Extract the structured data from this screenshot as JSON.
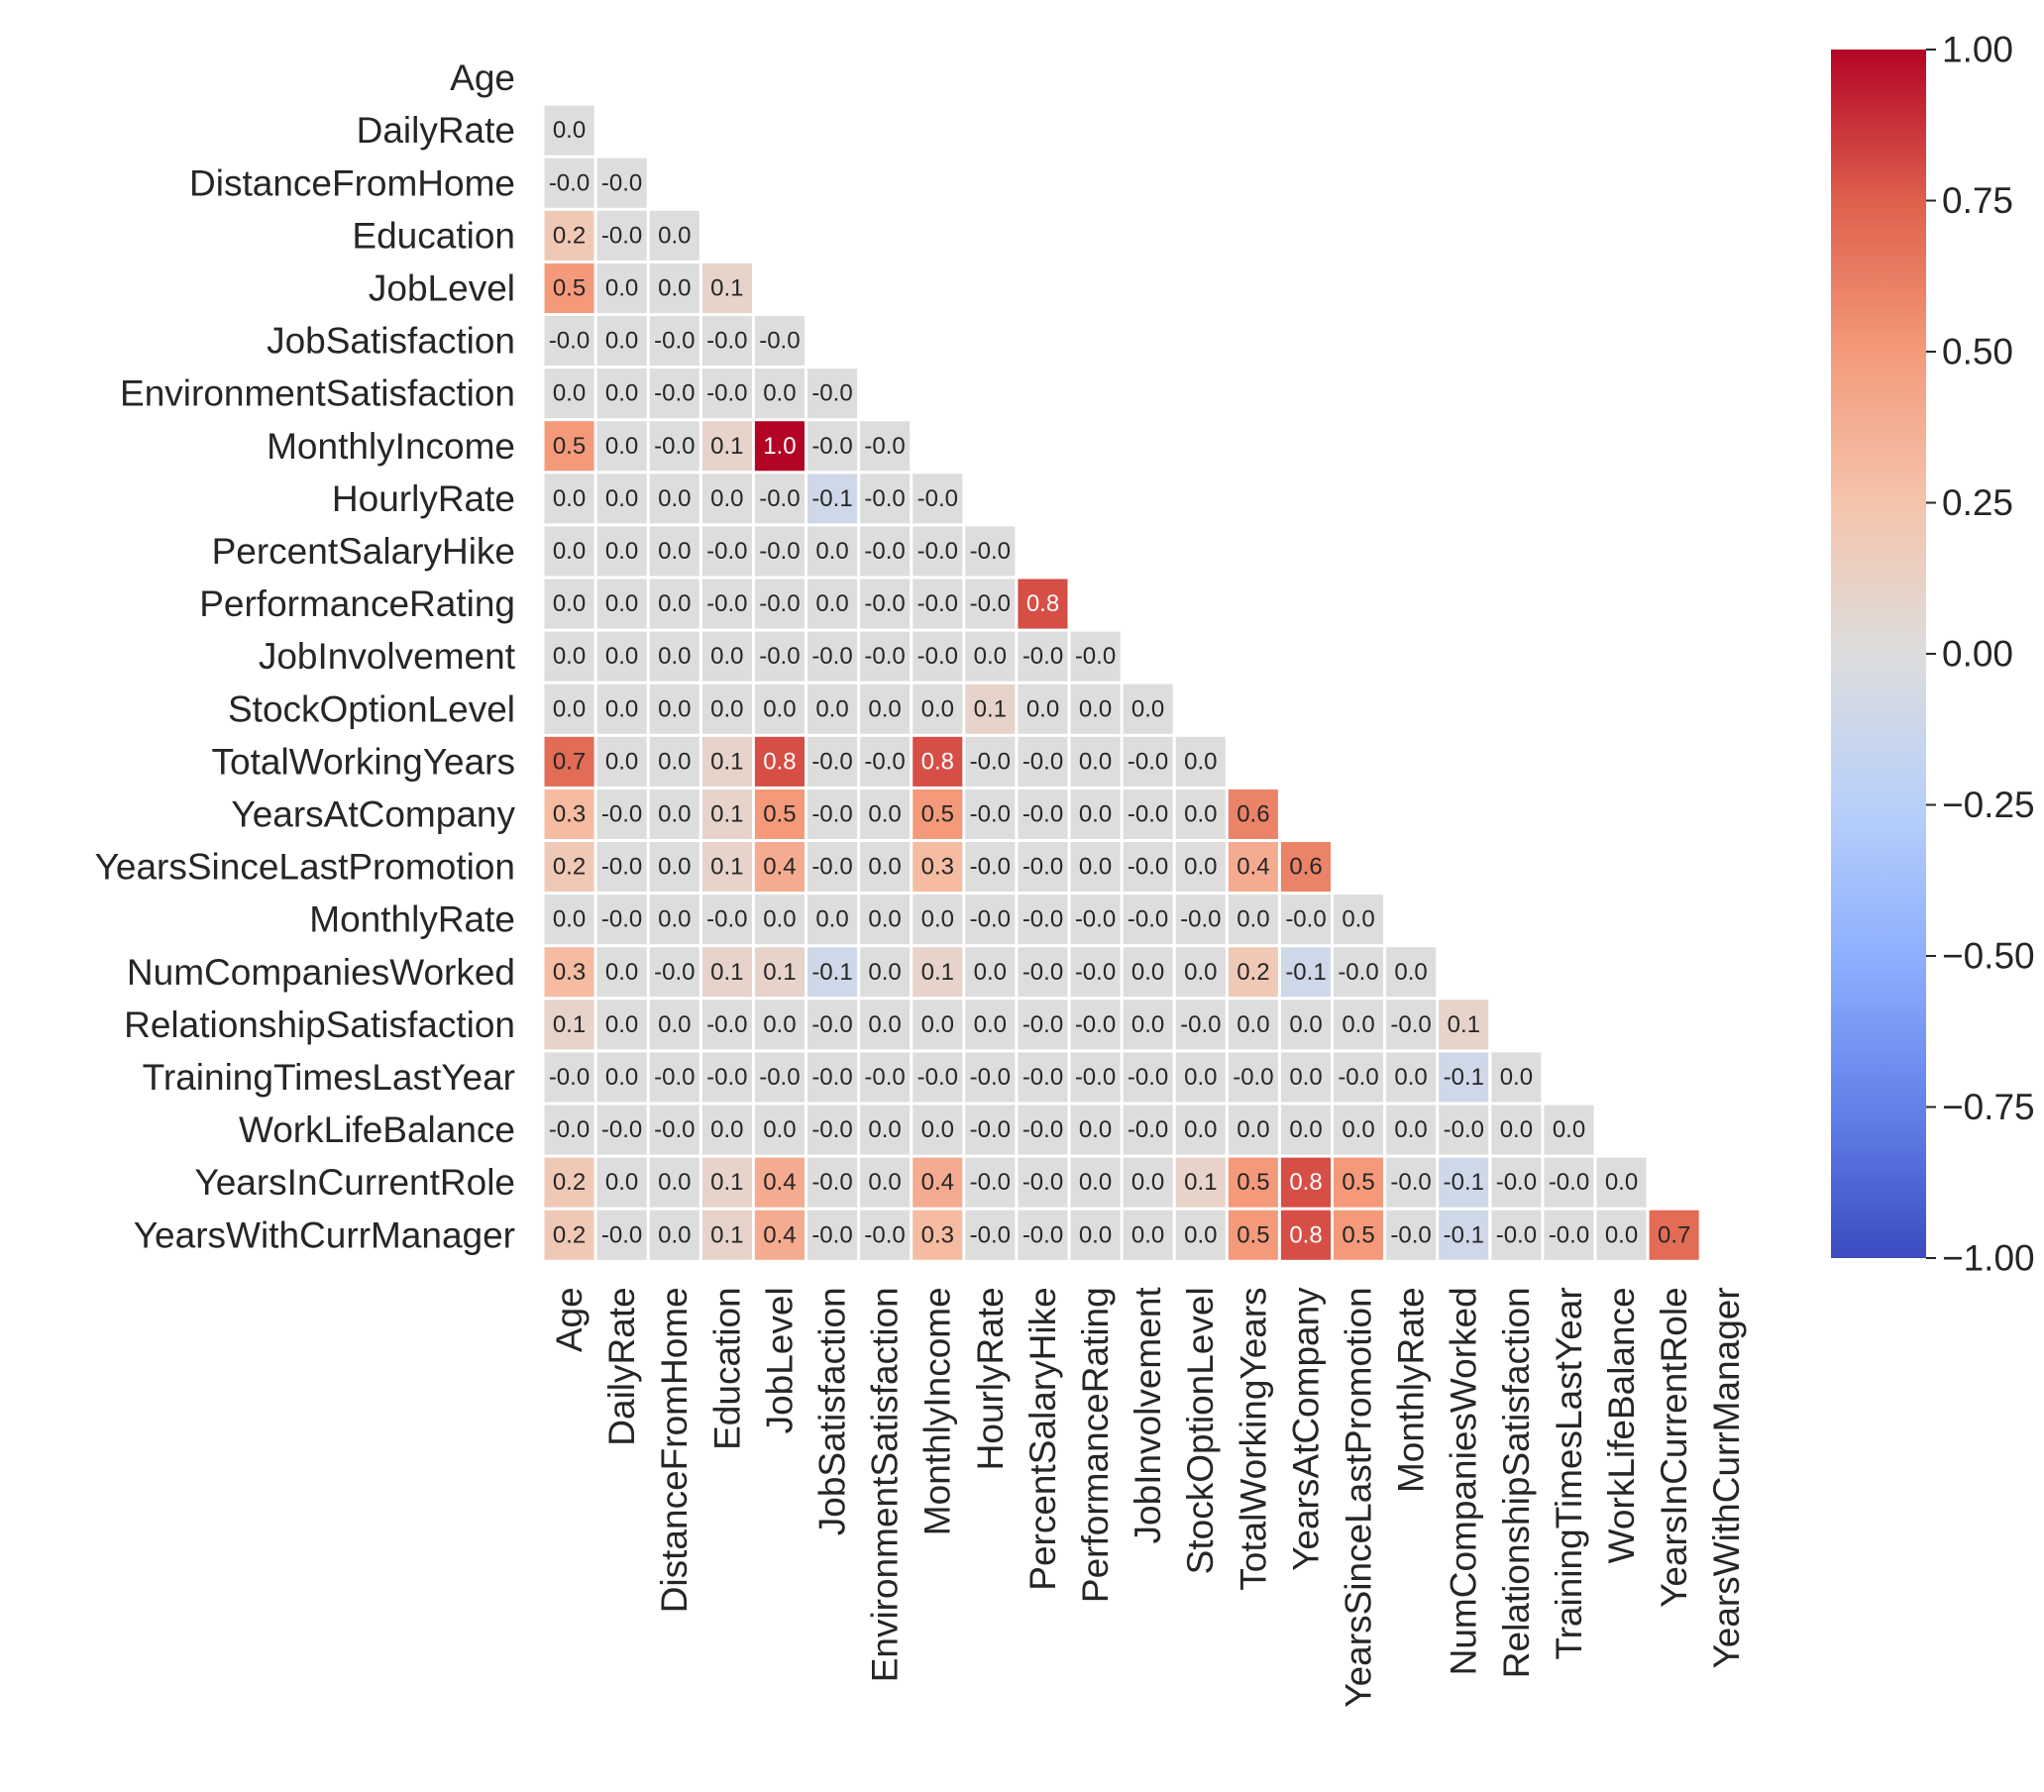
{
  "chart_data": {
    "type": "heatmap",
    "title": "",
    "variant": "lower-triangle correlation matrix",
    "colormap": "coolwarm",
    "vmin": -1.0,
    "vmax": 1.0,
    "labels": [
      "Age",
      "DailyRate",
      "DistanceFromHome",
      "Education",
      "JobLevel",
      "JobSatisfaction",
      "EnvironmentSatisfaction",
      "MonthlyIncome",
      "HourlyRate",
      "PercentSalaryHike",
      "PerformanceRating",
      "JobInvolvement",
      "StockOptionLevel",
      "TotalWorkingYears",
      "YearsAtCompany",
      "YearsSinceLastPromotion",
      "MonthlyRate",
      "NumCompaniesWorked",
      "RelationshipSatisfaction",
      "TrainingTimesLastYear",
      "WorkLifeBalance",
      "YearsInCurrentRole",
      "YearsWithCurrManager"
    ],
    "annotations": [
      [],
      [
        "0.0"
      ],
      [
        "-0.0",
        "-0.0"
      ],
      [
        "0.2",
        "-0.0",
        "0.0"
      ],
      [
        "0.5",
        "0.0",
        "0.0",
        "0.1"
      ],
      [
        "-0.0",
        "0.0",
        "-0.0",
        "-0.0",
        "-0.0"
      ],
      [
        "0.0",
        "0.0",
        "-0.0",
        "-0.0",
        "0.0",
        "-0.0"
      ],
      [
        "0.5",
        "0.0",
        "-0.0",
        "0.1",
        "1.0",
        "-0.0",
        "-0.0"
      ],
      [
        "0.0",
        "0.0",
        "0.0",
        "0.0",
        "-0.0",
        "-0.1",
        "-0.0",
        "-0.0"
      ],
      [
        "0.0",
        "0.0",
        "0.0",
        "-0.0",
        "-0.0",
        "0.0",
        "-0.0",
        "-0.0",
        "-0.0"
      ],
      [
        "0.0",
        "0.0",
        "0.0",
        "-0.0",
        "-0.0",
        "0.0",
        "-0.0",
        "-0.0",
        "-0.0",
        "0.8"
      ],
      [
        "0.0",
        "0.0",
        "0.0",
        "0.0",
        "-0.0",
        "-0.0",
        "-0.0",
        "-0.0",
        "0.0",
        "-0.0",
        "-0.0"
      ],
      [
        "0.0",
        "0.0",
        "0.0",
        "0.0",
        "0.0",
        "0.0",
        "0.0",
        "0.0",
        "0.1",
        "0.0",
        "0.0",
        "0.0"
      ],
      [
        "0.7",
        "0.0",
        "0.0",
        "0.1",
        "0.8",
        "-0.0",
        "-0.0",
        "0.8",
        "-0.0",
        "-0.0",
        "0.0",
        "-0.0",
        "0.0"
      ],
      [
        "0.3",
        "-0.0",
        "0.0",
        "0.1",
        "0.5",
        "-0.0",
        "0.0",
        "0.5",
        "-0.0",
        "-0.0",
        "0.0",
        "-0.0",
        "0.0",
        "0.6"
      ],
      [
        "0.2",
        "-0.0",
        "0.0",
        "0.1",
        "0.4",
        "-0.0",
        "0.0",
        "0.3",
        "-0.0",
        "-0.0",
        "0.0",
        "-0.0",
        "0.0",
        "0.4",
        "0.6"
      ],
      [
        "0.0",
        "-0.0",
        "0.0",
        "-0.0",
        "0.0",
        "0.0",
        "0.0",
        "0.0",
        "-0.0",
        "-0.0",
        "-0.0",
        "-0.0",
        "-0.0",
        "0.0",
        "-0.0",
        "0.0"
      ],
      [
        "0.3",
        "0.0",
        "-0.0",
        "0.1",
        "0.1",
        "-0.1",
        "0.0",
        "0.1",
        "0.0",
        "-0.0",
        "-0.0",
        "0.0",
        "0.0",
        "0.2",
        "-0.1",
        "-0.0",
        "0.0"
      ],
      [
        "0.1",
        "0.0",
        "0.0",
        "-0.0",
        "0.0",
        "-0.0",
        "0.0",
        "0.0",
        "0.0",
        "-0.0",
        "-0.0",
        "0.0",
        "-0.0",
        "0.0",
        "0.0",
        "0.0",
        "-0.0",
        "0.1"
      ],
      [
        "-0.0",
        "0.0",
        "-0.0",
        "-0.0",
        "-0.0",
        "-0.0",
        "-0.0",
        "-0.0",
        "-0.0",
        "-0.0",
        "-0.0",
        "-0.0",
        "0.0",
        "-0.0",
        "0.0",
        "-0.0",
        "0.0",
        "-0.1",
        "0.0"
      ],
      [
        "-0.0",
        "-0.0",
        "-0.0",
        "0.0",
        "0.0",
        "-0.0",
        "0.0",
        "0.0",
        "-0.0",
        "-0.0",
        "0.0",
        "-0.0",
        "0.0",
        "0.0",
        "0.0",
        "0.0",
        "0.0",
        "-0.0",
        "0.0",
        "0.0"
      ],
      [
        "0.2",
        "0.0",
        "0.0",
        "0.1",
        "0.4",
        "-0.0",
        "0.0",
        "0.4",
        "-0.0",
        "-0.0",
        "0.0",
        "0.0",
        "0.1",
        "0.5",
        "0.8",
        "0.5",
        "-0.0",
        "-0.1",
        "-0.0",
        "-0.0",
        "0.0"
      ],
      [
        "0.2",
        "-0.0",
        "0.0",
        "0.1",
        "0.4",
        "-0.0",
        "-0.0",
        "0.3",
        "-0.0",
        "-0.0",
        "0.0",
        "0.0",
        "0.0",
        "0.5",
        "0.8",
        "0.5",
        "-0.0",
        "-0.1",
        "-0.0",
        "-0.0",
        "0.0",
        "0.7"
      ]
    ],
    "colorbar": {
      "ticks": [
        1.0,
        0.75,
        0.5,
        0.25,
        0.0,
        -0.25,
        -0.5,
        -0.75,
        -1.0
      ],
      "tick_labels": [
        "1.00",
        "0.75",
        "0.50",
        "0.25",
        "0.00",
        "−0.25",
        "−0.50",
        "−0.75",
        "−1.00"
      ]
    },
    "grid": false,
    "legend": "colorbar-right"
  }
}
